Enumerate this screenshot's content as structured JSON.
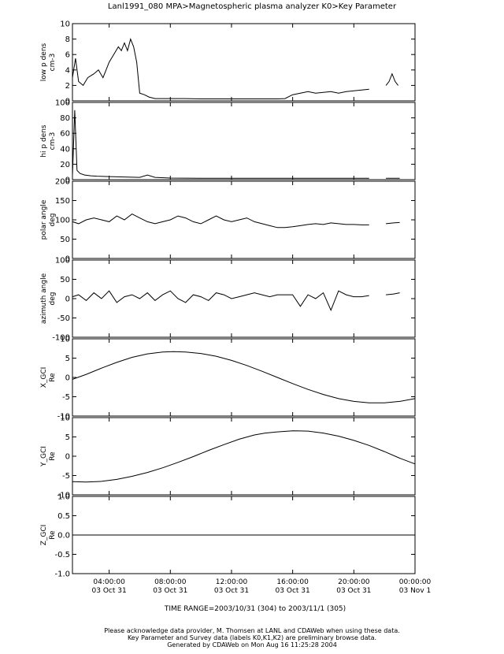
{
  "title": "Lanl1991_080  MPA>Magnetospheric plasma analyzer  K0>Key Parameter",
  "time_range": "TIME RANGE=2003/10/31 (304) to 2003/11/1 (305)",
  "footer": [
    "Please acknowledge data provider, M. Thomsen at LANL and CDAWeb when using these data.",
    "Key Parameter and Survey data (labels K0,K1,K2) are preliminary browse data.",
    "Generated by CDAWeb on Mon Aug 16 11:25:28 2004"
  ],
  "chart_data": {
    "type": "line",
    "x_unit": "hours since 2003-10-31 00:00 UT",
    "xlim": [
      1.6,
      24.0
    ],
    "x_ticks": [
      {
        "x": 4,
        "time": "04:00:00",
        "date": "03 Oct 31"
      },
      {
        "x": 8,
        "time": "08:00:00",
        "date": "03 Oct 31"
      },
      {
        "x": 12,
        "time": "12:00:00",
        "date": "03 Oct 31"
      },
      {
        "x": 16,
        "time": "16:00:00",
        "date": "03 Oct 31"
      },
      {
        "x": 20,
        "time": "20:00:00",
        "date": "03 Oct 31"
      },
      {
        "x": 24,
        "time": "00:00:00",
        "date": "03 Nov  1"
      }
    ],
    "panels": [
      {
        "ylabel": [
          "low p dens",
          "cm-3"
        ],
        "ylim": [
          0,
          10
        ],
        "yticks": [
          0,
          2,
          4,
          6,
          8,
          10
        ],
        "series": [
          {
            "x": [
              1.6,
              1.8,
              2.0,
              2.3,
              2.6,
              3.0,
              3.3,
              3.6,
              4.0,
              4.3,
              4.6,
              4.8,
              5.0,
              5.2,
              5.4,
              5.6,
              5.8,
              6.0,
              6.3,
              6.6,
              7.0,
              8.0,
              9.0,
              10.0,
              11.0,
              12.0,
              13.0,
              14.0,
              15.0,
              15.5,
              16.0,
              16.5,
              17.0,
              17.5,
              18.0,
              18.5,
              19.0,
              19.5,
              20.0,
              20.5,
              21.0
            ],
            "y": [
              3.0,
              5.5,
              2.5,
              2.0,
              3.0,
              3.5,
              4.0,
              3.0,
              5.0,
              6.0,
              7.0,
              6.5,
              7.5,
              6.5,
              8.0,
              7.0,
              5.0,
              1.0,
              0.8,
              0.5,
              0.3,
              0.3,
              0.3,
              0.25,
              0.25,
              0.25,
              0.25,
              0.25,
              0.25,
              0.3,
              0.8,
              1.0,
              1.2,
              1.0,
              1.1,
              1.2,
              1.0,
              1.2,
              1.3,
              1.4,
              1.5
            ]
          },
          {
            "x": [
              22.1,
              22.3,
              22.5,
              22.7,
              22.9
            ],
            "y": [
              2.0,
              2.5,
              3.5,
              2.5,
              2.0
            ]
          }
        ]
      },
      {
        "ylabel": [
          "hi p dens",
          "cm-3"
        ],
        "ylim": [
          0,
          100
        ],
        "yticks": [
          0,
          20,
          40,
          60,
          80,
          100
        ],
        "series": [
          {
            "x": [
              1.6,
              1.75,
              1.9,
              2.1,
              2.4,
              2.8,
              3.2,
              4.0,
              5.0,
              6.0,
              6.5,
              7.0,
              8.0,
              10.0,
              12.0,
              14.0,
              16.0,
              18.0,
              20.0,
              21.0
            ],
            "y": [
              5.0,
              90.0,
              12.0,
              8.0,
              6.0,
              5.0,
              4.5,
              4.0,
              3.5,
              3.0,
              6.0,
              3.0,
              2.0,
              1.8,
              1.8,
              1.8,
              1.8,
              1.8,
              1.8,
              1.8
            ]
          },
          {
            "x": [
              22.1,
              23.0
            ],
            "y": [
              1.8,
              1.8
            ]
          }
        ]
      },
      {
        "ylabel": [
          "polar angle",
          "deg"
        ],
        "ylim": [
          0,
          200
        ],
        "yticks": [
          0,
          50,
          100,
          150,
          200
        ],
        "series": [
          {
            "x": [
              1.6,
              2.0,
              2.5,
              3.0,
              3.5,
              4.0,
              4.5,
              5.0,
              5.5,
              6.0,
              6.5,
              7.0,
              7.5,
              8.0,
              8.5,
              9.0,
              9.5,
              10.0,
              10.5,
              11.0,
              11.5,
              12.0,
              12.5,
              13.0,
              13.5,
              14.0,
              14.5,
              15.0,
              15.5,
              16.0,
              16.5,
              17.0,
              17.5,
              18.0,
              18.5,
              19.0,
              19.5,
              20.0,
              20.5,
              21.0
            ],
            "y": [
              95,
              90,
              100,
              105,
              100,
              95,
              110,
              100,
              115,
              105,
              95,
              90,
              95,
              100,
              110,
              105,
              95,
              90,
              100,
              110,
              100,
              95,
              100,
              105,
              95,
              90,
              85,
              80,
              80,
              82,
              85,
              88,
              90,
              88,
              92,
              90,
              88,
              88,
              87,
              87
            ]
          },
          {
            "x": [
              22.1,
              22.6,
              23.0
            ],
            "y": [
              90,
              92,
              93
            ]
          }
        ]
      },
      {
        "ylabel": [
          "azimuth angle",
          "deg"
        ],
        "ylim": [
          -100,
          100
        ],
        "yticks": [
          -100,
          -50,
          0,
          50,
          100
        ],
        "series": [
          {
            "x": [
              1.6,
              2.0,
              2.5,
              3.0,
              3.5,
              4.0,
              4.5,
              5.0,
              5.5,
              6.0,
              6.5,
              7.0,
              7.5,
              8.0,
              8.5,
              9.0,
              9.5,
              10.0,
              10.5,
              11.0,
              11.5,
              12.0,
              12.5,
              13.0,
              13.5,
              14.0,
              14.5,
              15.0,
              15.5,
              16.0,
              16.5,
              17.0,
              17.5,
              18.0,
              18.5,
              19.0,
              19.5,
              20.0,
              20.5,
              21.0
            ],
            "y": [
              5,
              10,
              -5,
              15,
              0,
              20,
              -10,
              5,
              10,
              0,
              15,
              -5,
              10,
              20,
              0,
              -10,
              10,
              5,
              -5,
              15,
              10,
              0,
              5,
              10,
              15,
              10,
              5,
              10,
              10,
              10,
              -20,
              10,
              0,
              15,
              -30,
              20,
              10,
              5,
              5,
              8
            ]
          },
          {
            "x": [
              22.1,
              22.6,
              23.0
            ],
            "y": [
              10,
              12,
              15
            ]
          }
        ]
      },
      {
        "ylabel": [
          "X_GCI",
          "Re"
        ],
        "ylim": [
          -10,
          10
        ],
        "yticks": [
          -10,
          -5,
          0,
          5,
          10
        ],
        "series": [
          {
            "x": [
              1.6,
              2.5,
              3.5,
              4.5,
              5.5,
              6.5,
              7.5,
              8.2,
              9.0,
              10.0,
              11.0,
              12.0,
              13.0,
              14.0,
              15.0,
              16.0,
              17.0,
              18.0,
              19.0,
              20.0,
              21.0,
              22.0,
              23.0,
              24.0
            ],
            "y": [
              -0.5,
              0.8,
              2.4,
              3.9,
              5.2,
              6.1,
              6.6,
              6.7,
              6.6,
              6.2,
              5.5,
              4.4,
              3.1,
              1.6,
              0.0,
              -1.6,
              -3.1,
              -4.4,
              -5.5,
              -6.2,
              -6.6,
              -6.6,
              -6.2,
              -5.5
            ]
          }
        ]
      },
      {
        "ylabel": [
          "Y_GCI",
          "Re"
        ],
        "ylim": [
          -10,
          10
        ],
        "yticks": [
          -10,
          -5,
          0,
          5,
          10
        ],
        "series": [
          {
            "x": [
              1.6,
              2.5,
              3.5,
              4.5,
              5.5,
              6.5,
              7.5,
              8.5,
              9.5,
              10.5,
              11.5,
              12.5,
              13.5,
              14.2,
              15.0,
              16.0,
              17.0,
              18.0,
              19.0,
              20.0,
              21.0,
              22.0,
              23.0,
              24.0
            ],
            "y": [
              -6.6,
              -6.7,
              -6.5,
              -6.0,
              -5.2,
              -4.2,
              -3.0,
              -1.6,
              -0.1,
              1.5,
              3.0,
              4.4,
              5.5,
              6.0,
              6.3,
              6.6,
              6.5,
              6.0,
              5.2,
              4.1,
              2.8,
              1.2,
              -0.5,
              -2.0
            ]
          }
        ]
      },
      {
        "ylabel": [
          "Z_GCI",
          "Re"
        ],
        "ylim": [
          -1.0,
          1.0
        ],
        "yticks": [
          -1.0,
          -0.5,
          0.0,
          0.5,
          1.0
        ],
        "series": [
          {
            "x": [
              1.6,
              24.0
            ],
            "y": [
              0.0,
              0.0
            ]
          }
        ]
      }
    ]
  }
}
